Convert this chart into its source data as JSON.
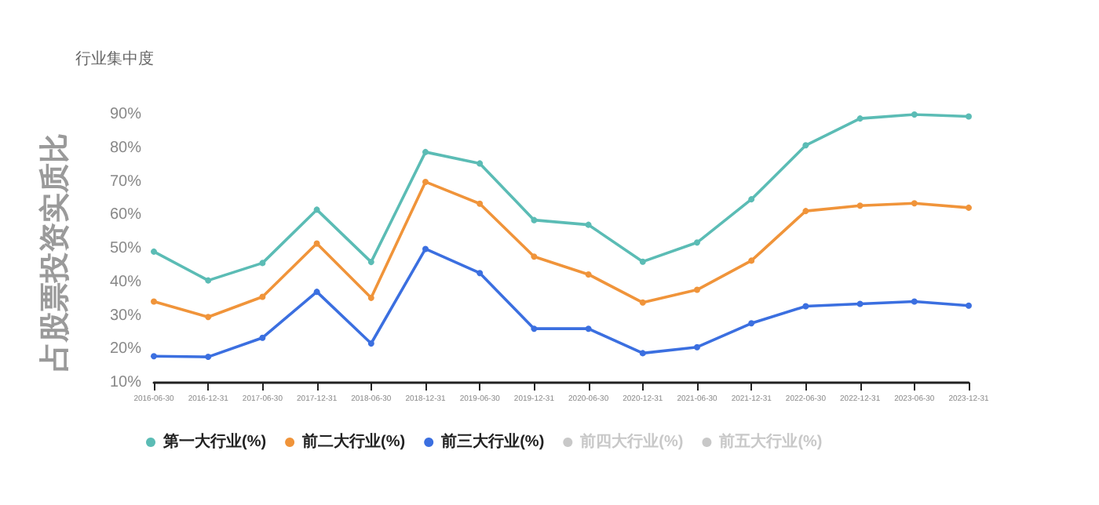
{
  "chart_data": {
    "type": "line",
    "ylabel": "行业集中度",
    "annotations": [
      "占股票投资实质比"
    ],
    "categories": [
      "2016-06-30",
      "2016-12-31",
      "2017-06-30",
      "2017-12-31",
      "2018-06-30",
      "2018-12-31",
      "2019-06-30",
      "2019-12-31",
      "2020-06-30",
      "2020-12-31",
      "2021-06-30",
      "2021-12-31",
      "2022-06-30",
      "2022-12-31",
      "2023-06-30",
      "2023-12-31"
    ],
    "series": [
      {
        "name": "第一大行业(%)",
        "color": "#5bbcb5",
        "values": [
          49.1,
          40.5,
          45.7,
          61.6,
          46,
          78.8,
          75.4,
          58.5,
          57.1,
          46.1,
          51.8,
          64.7,
          80.8,
          88.8,
          90,
          89.4
        ]
      },
      {
        "name": "前二大行业(%)",
        "color": "#f0943a",
        "values": [
          34.2,
          29.6,
          35.6,
          51.5,
          35.3,
          69.9,
          63.4,
          47.6,
          42.3,
          33.9,
          37.7,
          46.4,
          61.2,
          62.8,
          63.5,
          62.2
        ]
      },
      {
        "name": "前三大行业(%)",
        "color": "#3b6fe0",
        "values": [
          17.9,
          17.7,
          23.4,
          37.1,
          21.7,
          49.9,
          42.7,
          26.1,
          26.1,
          18.8,
          20.6,
          27.7,
          32.8,
          33.5,
          34.2,
          33
        ]
      },
      {
        "name": "前四大行业(%)",
        "values": [
          null,
          null,
          null,
          null,
          null,
          null,
          null,
          null,
          null,
          null,
          null,
          null,
          null,
          null,
          null,
          null
        ]
      },
      {
        "name": "前五大行业(%)",
        "values": [
          null,
          null,
          null,
          null,
          null,
          null,
          null,
          null,
          null,
          null,
          null,
          null,
          null,
          null,
          null,
          null
        ]
      }
    ],
    "ylim": [
      10,
      90
    ],
    "yticks": [
      {
        "value": 10,
        "label": "10%"
      },
      {
        "value": 20,
        "label": "20%"
      },
      {
        "value": 30,
        "label": "30%"
      },
      {
        "value": 40,
        "label": "40%"
      },
      {
        "value": 50,
        "label": "50%"
      },
      {
        "value": 60,
        "label": "60%"
      },
      {
        "value": 70,
        "label": "70%"
      },
      {
        "value": 80,
        "label": "80%"
      },
      {
        "value": 90,
        "label": "90%"
      }
    ],
    "legend": "bottom",
    "marker": "circle",
    "grid": false
  }
}
